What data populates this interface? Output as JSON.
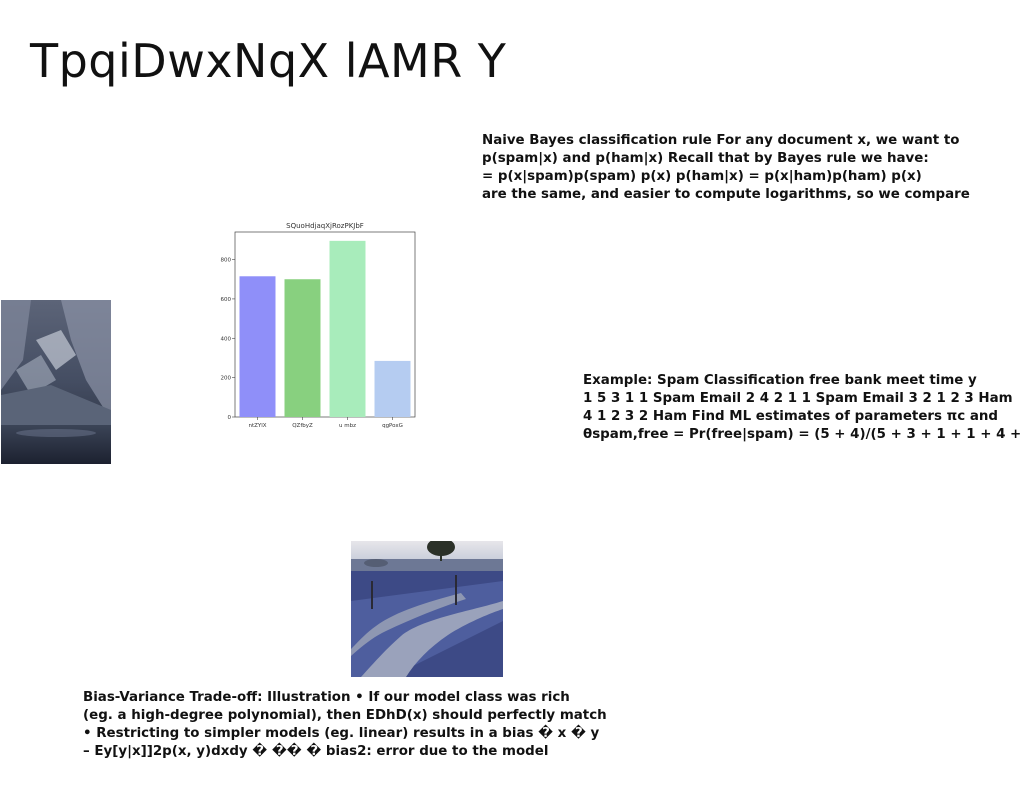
{
  "slide": {
    "title": "TpqiDwxNqX lAMR Y"
  },
  "blocks": {
    "naive_bayes": [
      "Naive Bayes classification rule For any document x, we want to",
      "p(spam|x) and p(ham|x) Recall that by Bayes rule we have:",
      "= p(x|spam)p(spam) p(x) p(ham|x) = p(x|ham)p(ham) p(x)",
      "are the same, and easier to compute logarithms, so we compare"
    ],
    "spam_example": [
      "Example: Spam Classification free bank meet time y",
      "1 5 3 1 1 Spam Email 2 4 2 1 1 Spam Email 3 2 1 2 3 Ham",
      "4 1 2 3 2 Ham Find ML estimates of parameters πc and",
      "θspam,free = Pr(free|spam) = (5 + 4)/(5 + 3 + 1 + 1 + 4 +"
    ],
    "bias_variance": [
      "Bias-Variance Trade-off: Illustration • If our model class was rich",
      "(eg. a high-degree polynomial), then EDhD(x) should perfectly match",
      "• Restricting to simpler models (eg. linear) results in a bias � x � y",
      "– Ey[y|x]]2p(x, y)dxdy � �� � bias2: error due to the model"
    ]
  },
  "chart_data": {
    "type": "bar",
    "title": "SQuoHdjaqXjRozPKJbF",
    "categories": [
      "ntZYlX",
      "QZfbyZ",
      "u mbz",
      "qgPoxG"
    ],
    "values": [
      715,
      700,
      895,
      285
    ],
    "colors": [
      "#8f8ff9",
      "#88d07f",
      "#a8ecbb",
      "#b5ccf1"
    ],
    "yticks": [
      "0",
      "200",
      "400",
      "600",
      "800"
    ],
    "ylim": [
      0,
      940
    ],
    "xlabel": "",
    "ylabel": ""
  }
}
